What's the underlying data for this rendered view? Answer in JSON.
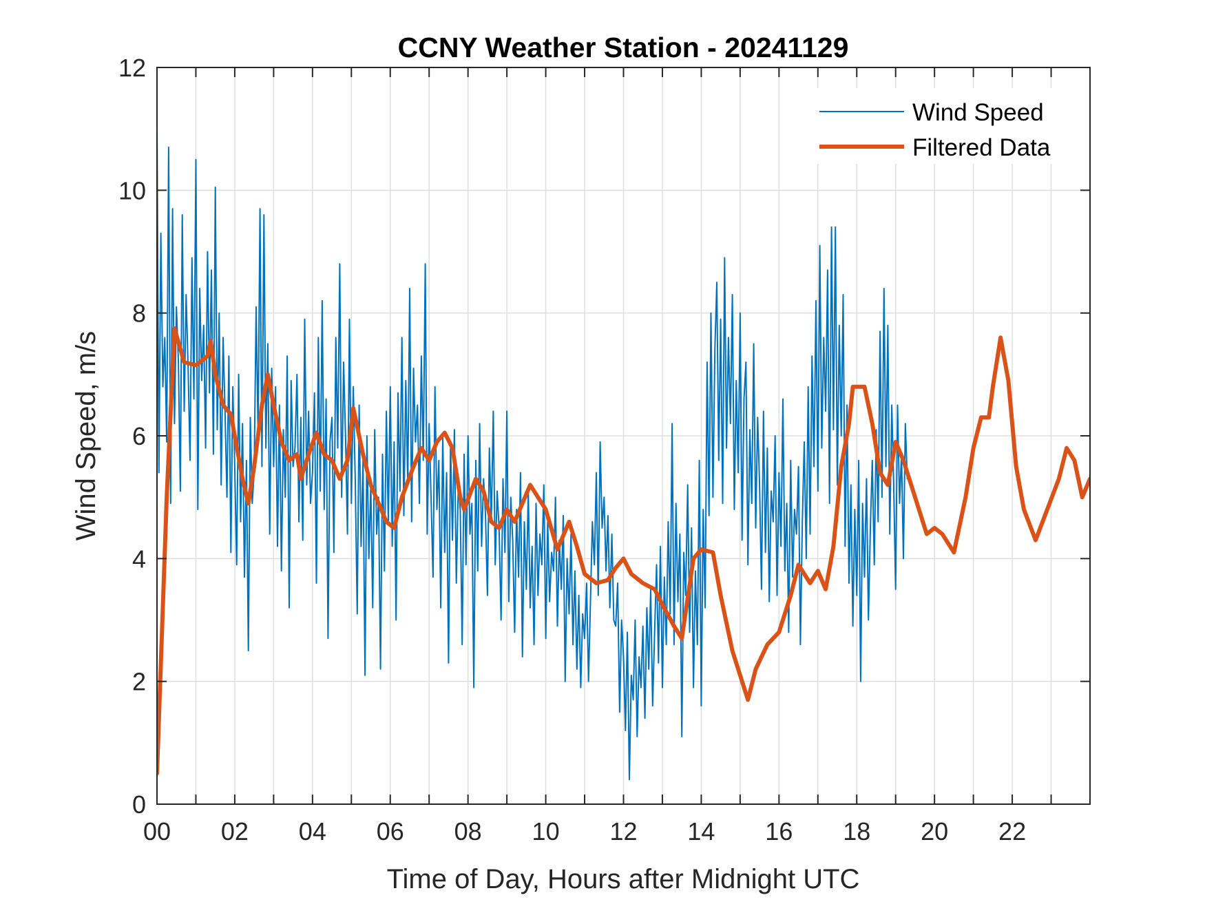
{
  "chart_data": {
    "type": "line",
    "title": "CCNY Weather Station - 20241129",
    "xlabel": "Time of Day, Hours after Midnight UTC",
    "ylabel": "Wind Speed, m/s",
    "xlim": [
      0,
      24
    ],
    "ylim": [
      0,
      12
    ],
    "grid": true,
    "legend_position": "top-right",
    "x_ticks": [
      0,
      2,
      4,
      6,
      8,
      10,
      12,
      14,
      16,
      18,
      20,
      22
    ],
    "x_tick_labels": [
      "00",
      "02",
      "04",
      "06",
      "08",
      "10",
      "12",
      "14",
      "16",
      "18",
      "20",
      "22"
    ],
    "x_minor_grid_step_hours": 1,
    "y_ticks": [
      0,
      2,
      4,
      6,
      8,
      10,
      12
    ],
    "y_tick_labels": [
      "0",
      "2",
      "4",
      "6",
      "8",
      "10",
      "12"
    ],
    "series": [
      {
        "name": "Wind Speed",
        "color": "#0072BD",
        "style": "thin",
        "x_step_hours": 0.05,
        "x_start": 0,
        "values": [
          11.1,
          5.4,
          9.3,
          6.8,
          7.6,
          5.9,
          10.7,
          4.9,
          9.7,
          6.2,
          8.1,
          7.2,
          5.1,
          9.6,
          6.4,
          8.3,
          7.1,
          5.6,
          8.9,
          6.6,
          10.5,
          4.8,
          8.4,
          6.9,
          7.8,
          5.8,
          9.0,
          6.7,
          8.7,
          5.7,
          10.05,
          6.1,
          8.0,
          5.2,
          7.6,
          6.4,
          5.0,
          7.3,
          4.1,
          6.8,
          5.5,
          3.9,
          7.0,
          4.6,
          6.2,
          3.7,
          5.6,
          2.5,
          6.3,
          4.9,
          5.4,
          8.1,
          6.0,
          9.7,
          5.5,
          9.6,
          5.8,
          7.5,
          4.4,
          7.1,
          5.5,
          6.8,
          4.2,
          6.5,
          3.8,
          6.1,
          5.0,
          7.3,
          3.2,
          6.9,
          5.5,
          5.8,
          7.0,
          4.6,
          6.3,
          4.3,
          7.9,
          5.2,
          6.4,
          4.9,
          5.4,
          6.7,
          3.6,
          7.6,
          5.1,
          8.2,
          4.8,
          6.6,
          2.7,
          5.9,
          6.3,
          4.1,
          7.6,
          5.8,
          8.8,
          5.0,
          7.2,
          6.0,
          4.4,
          7.9,
          4.9,
          6.8,
          5.3,
          3.1,
          6.5,
          4.2,
          5.6,
          2.1,
          6.0,
          4.0,
          5.2,
          3.2,
          6.1,
          4.4,
          5.0,
          2.2,
          5.7,
          3.8,
          6.4,
          4.6,
          6.8,
          4.2,
          5.9,
          3.0,
          6.7,
          5.1,
          7.6,
          4.7,
          6.9,
          5.2,
          8.4,
          4.6,
          7.1,
          5.9,
          6.5,
          4.9,
          7.3,
          5.6,
          8.8,
          4.4,
          6.2,
          5.0,
          3.7,
          6.8,
          4.8,
          5.6,
          3.2,
          6.0,
          4.1,
          5.4,
          2.3,
          5.9,
          4.3,
          6.1,
          3.6,
          5.2,
          4.8,
          2.6,
          5.7,
          3.9,
          6.0,
          4.4,
          4.9,
          1.9,
          5.6,
          3.8,
          6.2,
          4.2,
          5.3,
          4.7,
          3.4,
          5.8,
          4.6,
          6.4,
          3.9,
          5.1,
          4.5,
          3.0,
          5.3,
          4.1,
          6.4,
          3.3,
          5.0,
          4.3,
          2.8,
          4.8,
          3.7,
          5.4,
          2.4,
          4.6,
          3.5,
          5.1,
          3.2,
          4.2,
          2.6,
          4.9,
          3.4,
          4.4,
          3.9,
          5.2,
          2.7,
          4.6,
          3.3,
          4.1,
          3.8,
          5.0,
          2.9,
          4.3,
          3.5,
          4.7,
          2.0,
          4.0,
          3.1,
          4.4,
          2.6,
          3.8,
          2.2,
          3.4,
          1.9,
          3.1,
          2.7,
          3.6,
          2.0,
          3.3,
          4.6,
          3.9,
          5.4,
          3.4,
          5.9,
          4.5,
          5.0,
          3.8,
          4.7,
          3.2,
          4.4,
          3.0,
          2.9,
          3.6,
          1.5,
          3.0,
          2.4,
          1.2,
          2.8,
          0.4,
          2.1,
          1.7,
          3.0,
          1.1,
          2.4,
          1.9,
          2.9,
          1.4,
          3.2,
          2.2,
          3.5,
          1.6,
          2.8,
          3.9,
          2.3,
          4.2,
          1.9,
          3.7,
          2.6,
          4.6,
          3.1,
          6.2,
          2.6,
          4.9,
          3.3,
          4.4,
          1.1,
          4.1,
          3.4,
          5.2,
          2.8,
          4.5,
          1.9,
          3.8,
          2.6,
          5.6,
          1.6,
          4.8,
          3.2,
          7.2,
          4.7,
          8.0,
          5.0,
          7.4,
          8.5,
          5.6,
          7.9,
          4.9,
          8.9,
          5.8,
          7.6,
          6.2,
          8.3,
          4.8,
          6.9,
          5.4,
          8.0,
          4.3,
          6.6,
          7.2,
          3.9,
          6.1,
          4.9,
          7.5,
          4.5,
          6.3,
          5.2,
          3.5,
          6.4,
          4.1,
          5.8,
          3.3,
          5.1,
          4.6,
          6.0,
          3.4,
          5.4,
          4.2,
          6.6,
          3.8,
          4.9,
          2.8,
          5.6,
          3.7,
          4.8,
          4.4,
          5.5,
          2.6,
          4.6,
          5.9,
          4.0,
          6.8,
          4.4,
          7.3,
          5.5,
          8.2,
          5.1,
          9.1,
          5.8,
          7.6,
          6.4,
          8.7,
          4.9,
          9.4,
          6.1,
          9.4,
          5.2,
          7.8,
          6.0,
          8.3,
          4.2,
          6.5,
          3.6,
          5.2,
          2.9,
          4.8,
          3.4,
          5.6,
          2.0,
          4.9,
          3.7,
          5.3,
          3.0,
          4.5,
          5.6,
          3.9,
          6.1,
          4.6,
          7.7,
          5.0,
          8.4,
          5.5,
          7.8,
          4.4,
          6.5,
          5.2,
          3.5,
          6.5,
          4.9,
          5.7,
          4.0,
          6.2,
          5.3
        ]
      },
      {
        "name": "Filtered Data",
        "color": "#D95319",
        "style": "thick",
        "x": [
          0,
          0.25,
          0.45,
          0.7,
          1.0,
          1.3,
          1.38,
          1.5,
          1.7,
          1.9,
          2.0,
          2.2,
          2.35,
          2.5,
          2.7,
          2.85,
          3.0,
          3.2,
          3.4,
          3.6,
          3.7,
          3.9,
          4.1,
          4.3,
          4.5,
          4.7,
          4.9,
          5.05,
          5.3,
          5.5,
          5.7,
          5.9,
          6.1,
          6.3,
          6.6,
          6.8,
          7.0,
          7.2,
          7.4,
          7.6,
          7.8,
          7.9,
          8.2,
          8.4,
          8.6,
          8.8,
          9.0,
          9.2,
          9.4,
          9.6,
          9.8,
          10.0,
          10.3,
          10.6,
          10.8,
          11.0,
          11.3,
          11.6,
          11.8,
          12.0,
          12.2,
          12.5,
          12.8,
          13.0,
          13.3,
          13.5,
          13.8,
          14.0,
          14.3,
          14.5,
          14.8,
          15.0,
          15.2,
          15.4,
          15.7,
          16.0,
          16.3,
          16.5,
          16.8,
          17.0,
          17.2,
          17.4,
          17.6,
          17.8,
          17.9,
          18.2,
          18.4,
          18.6,
          18.8,
          19.0,
          19.2,
          19.4,
          19.6,
          19.8,
          20.0,
          20.2,
          20.5,
          20.8,
          21.0,
          21.2,
          21.4,
          21.5,
          21.7,
          21.9,
          22.1,
          22.3,
          22.6,
          22.9,
          23.2,
          23.4,
          23.6,
          23.8,
          24.0
        ],
        "values": [
          0.5,
          5.0,
          7.75,
          7.2,
          7.15,
          7.3,
          7.55,
          7.0,
          6.5,
          6.35,
          6.0,
          5.3,
          4.9,
          5.5,
          6.5,
          7.0,
          6.5,
          5.9,
          5.6,
          5.7,
          5.3,
          5.7,
          6.05,
          5.7,
          5.6,
          5.3,
          5.6,
          6.45,
          5.7,
          5.2,
          4.9,
          4.6,
          4.5,
          5.0,
          5.5,
          5.8,
          5.6,
          5.9,
          6.05,
          5.8,
          5.0,
          4.8,
          5.3,
          5.1,
          4.6,
          4.5,
          4.8,
          4.6,
          4.9,
          5.2,
          5.0,
          4.8,
          4.15,
          4.6,
          4.2,
          3.75,
          3.6,
          3.65,
          3.85,
          4.0,
          3.75,
          3.6,
          3.5,
          3.25,
          2.9,
          2.7,
          4.0,
          4.15,
          4.1,
          3.4,
          2.5,
          2.1,
          1.7,
          2.2,
          2.6,
          2.8,
          3.4,
          3.9,
          3.6,
          3.8,
          3.5,
          4.2,
          5.5,
          6.2,
          6.8,
          6.8,
          6.2,
          5.4,
          5.2,
          5.9,
          5.6,
          5.2,
          4.8,
          4.4,
          4.5,
          4.4,
          4.1,
          5.0,
          5.8,
          6.3,
          6.3,
          6.8,
          7.6,
          6.9,
          5.5,
          4.8,
          4.3,
          4.8,
          5.3,
          5.8,
          5.6,
          5.0,
          5.3
        ]
      }
    ]
  }
}
